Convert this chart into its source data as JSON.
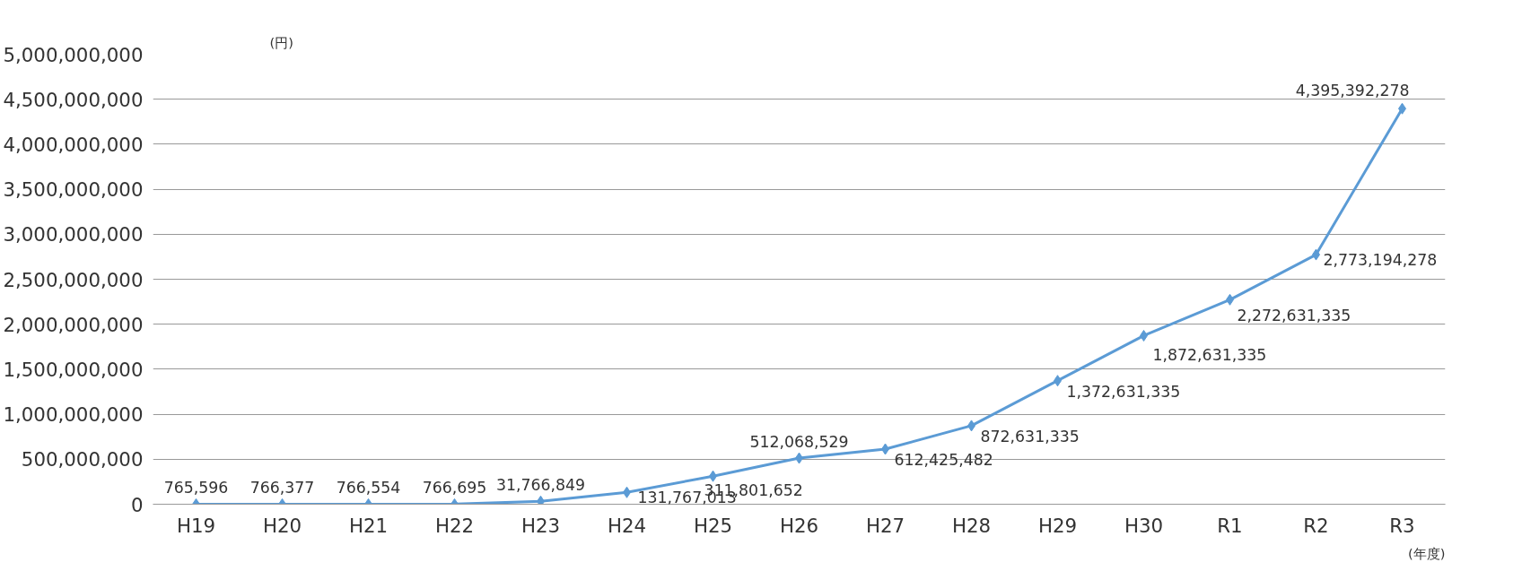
{
  "chart_data": {
    "type": "line",
    "xlabel": "(年度)",
    "ylabel": "(円)",
    "categories": [
      "H19",
      "H20",
      "H21",
      "H22",
      "H23",
      "H24",
      "H25",
      "H26",
      "H27",
      "H28",
      "H29",
      "H30",
      "R1",
      "R2",
      "R3"
    ],
    "series": [
      {
        "color": "#5b9bd5",
        "values": [
          765596,
          766377,
          766554,
          766695,
          31766849,
          131767013,
          311801652,
          512068529,
          612425482,
          872631335,
          1372631335,
          1872631335,
          2272631335,
          2773194278,
          4395392278
        ]
      }
    ],
    "ylim": [
      0,
      5000000000
    ],
    "yticks": [
      {
        "value": 0,
        "label": "0"
      },
      {
        "value": 500000000,
        "label": "500,000,000"
      },
      {
        "value": 1000000000,
        "label": "1,000,000,000"
      },
      {
        "value": 1500000000,
        "label": "1,500,000,000"
      },
      {
        "value": 2000000000,
        "label": "2,000,000,000"
      },
      {
        "value": 2500000000,
        "label": "2,500,000,000"
      },
      {
        "value": 3000000000,
        "label": "3,000,000,000"
      },
      {
        "value": 3500000000,
        "label": "3,500,000,000"
      },
      {
        "value": 4000000000,
        "label": "4,000,000,000"
      },
      {
        "value": 4500000000,
        "label": "4,500,000,000"
      },
      {
        "value": 5000000000,
        "label": "5,000,000,000"
      }
    ],
    "value_labels": [
      "765,596",
      "766,377",
      "766,554",
      "766,695",
      "31,766,849",
      "131,767,013",
      "311,801,652",
      "512,068,529",
      "612,425,482",
      "872,631,335",
      "1,372,631,335",
      "1,872,631,335",
      "2,272,631,335",
      "2,773,194,278",
      "4,395,392,278"
    ],
    "grid": "y",
    "marker": "diamond",
    "line_style": "solid"
  }
}
